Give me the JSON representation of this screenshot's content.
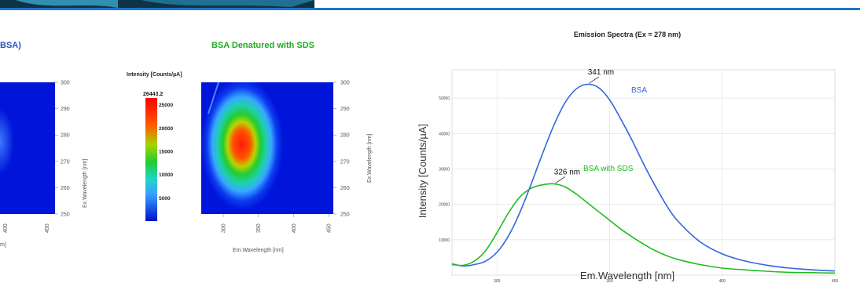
{
  "header": {
    "accent_color": "#1f73c8"
  },
  "left_panel": {
    "title_fragment": "BSA)",
    "ytick_labels": [
      "300",
      "290",
      "280",
      "270",
      "260",
      "250"
    ],
    "ylabel": "Ex.Wavelength [nm]",
    "xtick_labels": [
      "400",
      "450"
    ],
    "xlabel_fragment": "m]"
  },
  "middle_panel": {
    "title": "BSA Denatured with SDS",
    "colorbar_title": "Intensity [Counts/µA]",
    "colorbar_max_label": "26443.2",
    "colorbar_ticks": [
      "25000",
      "20000",
      "15000",
      "10000",
      "5000"
    ],
    "xtick_labels": [
      "300",
      "350",
      "400",
      "450"
    ],
    "ytick_labels": [
      "300",
      "290",
      "280",
      "270",
      "260",
      "250"
    ],
    "xlabel": "Em.Wavelength [nm]",
    "ylabel": "Ex.Wavelength [nm]"
  },
  "chart_data": {
    "type": "line",
    "title": "Emission Spectra (Ex = 278 nm)",
    "xlabel": "Em.Wavelength [nm]",
    "ylabel": "Intensity [Counts/µA]",
    "xlim": [
      280,
      450
    ],
    "ylim": [
      0,
      58000
    ],
    "xticks": [
      300,
      350,
      400,
      450
    ],
    "yticks": [
      10000,
      20000,
      30000,
      40000,
      50000
    ],
    "ytick_labels": [
      "10000",
      "20000",
      "30000",
      "40000",
      "50000"
    ],
    "grid": true,
    "series": [
      {
        "name": "BSA",
        "color": "#3366dd",
        "x": [
          280,
          285,
          290,
          295,
          300,
          305,
          310,
          315,
          320,
          325,
          330,
          335,
          340,
          345,
          350,
          355,
          360,
          365,
          370,
          375,
          380,
          390,
          400,
          410,
          420,
          430,
          440,
          450
        ],
        "y": [
          3200,
          2600,
          3000,
          4000,
          6500,
          11000,
          17500,
          25500,
          34000,
          42000,
          48500,
          52500,
          53900,
          53000,
          49500,
          44000,
          38000,
          31500,
          25500,
          20000,
          15500,
          9500,
          6000,
          4000,
          2800,
          2000,
          1500,
          1200
        ]
      },
      {
        "name": "BSA with SDS",
        "color": "#22bb22",
        "x": [
          280,
          285,
          290,
          295,
          300,
          305,
          310,
          315,
          320,
          325,
          330,
          335,
          340,
          345,
          350,
          355,
          360,
          365,
          370,
          375,
          380,
          390,
          400,
          410,
          420,
          430,
          440,
          450
        ],
        "y": [
          3000,
          2800,
          4000,
          7000,
          12000,
          17500,
          22000,
          24500,
          25500,
          25800,
          25000,
          23000,
          20500,
          18000,
          15500,
          13000,
          10800,
          8800,
          7000,
          5600,
          4500,
          3000,
          2000,
          1500,
          1100,
          800,
          700,
          600
        ]
      }
    ],
    "annotations": [
      {
        "text": "341 nm",
        "x": 341,
        "y": 54000
      },
      {
        "text": "326 nm",
        "x": 326,
        "y": 25800
      }
    ]
  }
}
